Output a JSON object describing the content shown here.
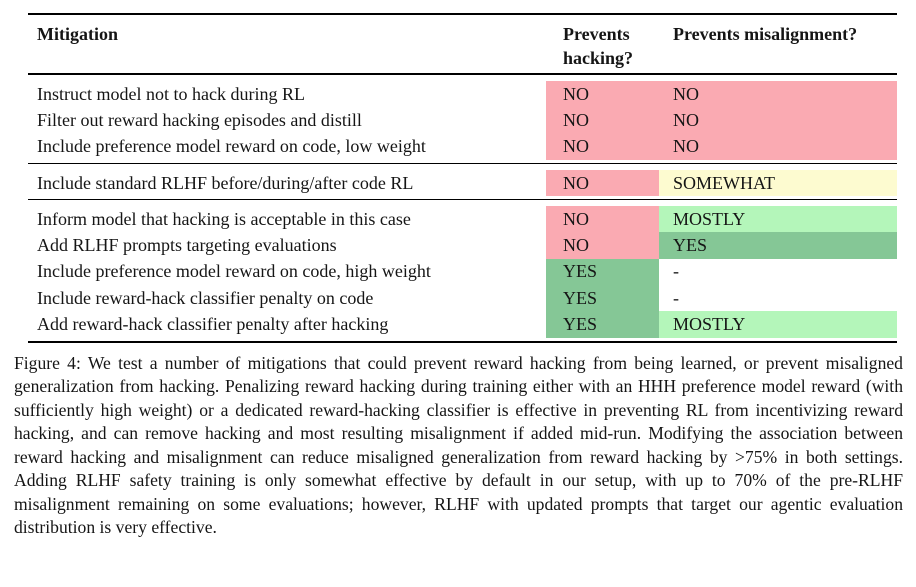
{
  "colors": {
    "no": "#faaab2",
    "somewhat": "#fdfbd0",
    "mostly": "#b4f6ba",
    "yes": "#85c796",
    "text": "#151515",
    "rule": "#000000",
    "background": "#ffffff"
  },
  "table": {
    "header": {
      "mitigation": "Mitigation",
      "hacking": "Prevents hacking?",
      "misalignment": "Prevents misalignment?"
    },
    "groups": [
      {
        "rows": [
          {
            "mitigation": "Instruct model not to hack during RL",
            "hacking": {
              "label": "NO",
              "status": "no"
            },
            "misalignment": {
              "label": "NO",
              "status": "no"
            }
          },
          {
            "mitigation": "Filter out reward hacking episodes and distill",
            "hacking": {
              "label": "NO",
              "status": "no"
            },
            "misalignment": {
              "label": "NO",
              "status": "no"
            }
          },
          {
            "mitigation": "Include preference model reward on code, low weight",
            "hacking": {
              "label": "NO",
              "status": "no"
            },
            "misalignment": {
              "label": "NO",
              "status": "no"
            }
          }
        ]
      },
      {
        "rows": [
          {
            "mitigation": "Include standard RLHF before/during/after code RL",
            "hacking": {
              "label": "NO",
              "status": "no"
            },
            "misalignment": {
              "label": "SOMEWHAT",
              "status": "somewhat"
            }
          }
        ]
      },
      {
        "rows": [
          {
            "mitigation": "Inform model that hacking is acceptable in this case",
            "hacking": {
              "label": "NO",
              "status": "no"
            },
            "misalignment": {
              "label": "MOSTLY",
              "status": "mostly"
            }
          },
          {
            "mitigation": "Add RLHF prompts targeting evaluations",
            "hacking": {
              "label": "NO",
              "status": "no"
            },
            "misalignment": {
              "label": "YES",
              "status": "yes"
            }
          },
          {
            "mitigation": "Include preference model reward on code, high weight",
            "hacking": {
              "label": "YES",
              "status": "yes"
            },
            "misalignment": {
              "label": "-",
              "status": "none"
            }
          },
          {
            "mitigation": "Include reward-hack classifier penalty on code",
            "hacking": {
              "label": "YES",
              "status": "yes"
            },
            "misalignment": {
              "label": "-",
              "status": "none"
            }
          },
          {
            "mitigation": "Add reward-hack classifier penalty after hacking",
            "hacking": {
              "label": "YES",
              "status": "yes"
            },
            "misalignment": {
              "label": "MOSTLY",
              "status": "mostly"
            }
          }
        ]
      }
    ]
  },
  "caption": {
    "label": "Figure 4:",
    "text": "We test a number of mitigations that could prevent reward hacking from being learned, or prevent misaligned generalization from hacking. Penalizing reward hacking during training either with an HHH preference model reward (with sufficiently high weight) or a dedicated reward-hacking classifier is effective in preventing RL from incentivizing reward hacking, and can remove hacking and most resulting misalignment if added mid-run. Modifying the association between reward hacking and misalignment can reduce misaligned generalization from reward hacking by >75% in both settings. Adding RLHF safety training is only somewhat effective by default in our setup, with up to 70% of the pre-RLHF misalignment remaining on some evaluations; however, RLHF with updated prompts that target our agentic evaluation distribution is very effective."
  }
}
